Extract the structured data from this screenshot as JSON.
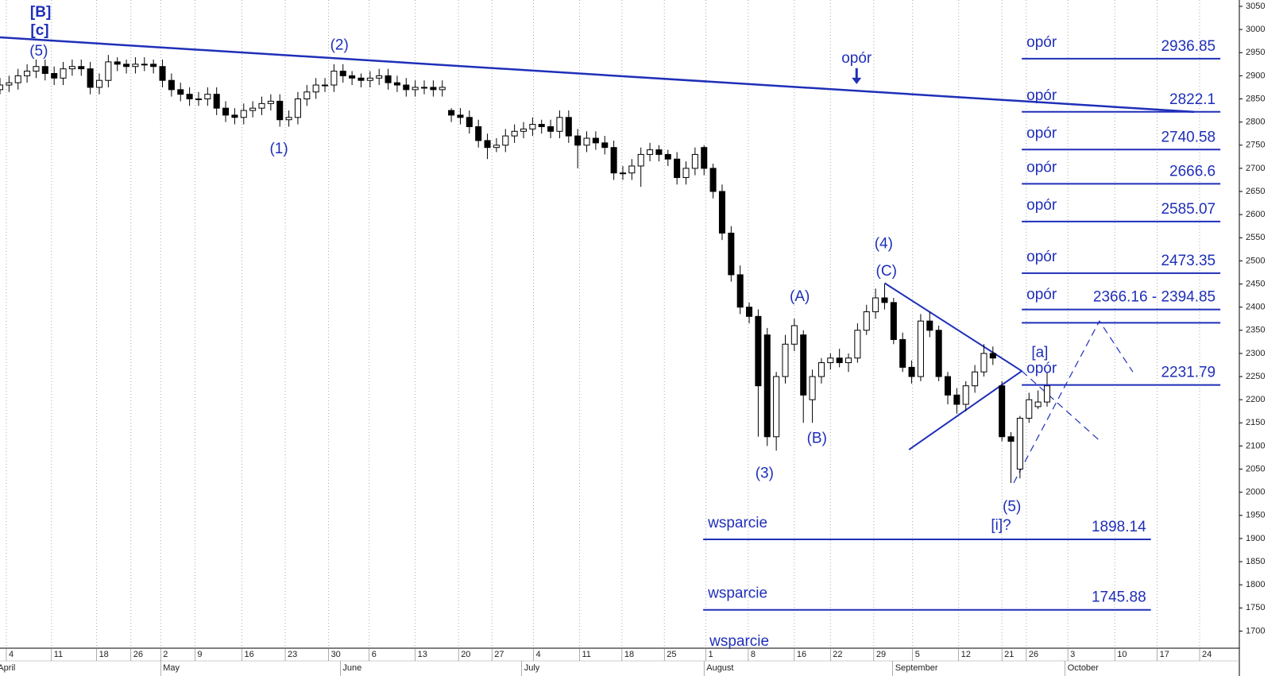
{
  "chart_data": {
    "type": "candlestick",
    "x": [
      0,
      1,
      2,
      3,
      4,
      5,
      6,
      7,
      8,
      9,
      10,
      11,
      12,
      13,
      14,
      15,
      16,
      17,
      18,
      19,
      20,
      21,
      22,
      23,
      24,
      25,
      26,
      27,
      28,
      29,
      30,
      31,
      32,
      33,
      34,
      35,
      36,
      37,
      38,
      39,
      40,
      41,
      42,
      43,
      44,
      45,
      46,
      47,
      48,
      49,
      50,
      51,
      52,
      53,
      54,
      55,
      56,
      57,
      58,
      59,
      60,
      61,
      62,
      63,
      64,
      65,
      66,
      67,
      68,
      69,
      70,
      71,
      72,
      73,
      74,
      75,
      76,
      77,
      78,
      79,
      80,
      81,
      82,
      83,
      84,
      85,
      86,
      87,
      88,
      89,
      90,
      91,
      92,
      93,
      94,
      95,
      96,
      97,
      98,
      99,
      100,
      101,
      102,
      103,
      104,
      105,
      106,
      107,
      108,
      109,
      110,
      111,
      112,
      113,
      114,
      115,
      116
    ],
    "ohlc": [
      [
        2870,
        2895,
        2860,
        2880
      ],
      [
        2880,
        2900,
        2865,
        2885
      ],
      [
        2885,
        2915,
        2870,
        2900
      ],
      [
        2900,
        2925,
        2885,
        2910
      ],
      [
        2910,
        2935,
        2895,
        2920
      ],
      [
        2920,
        2935,
        2890,
        2905
      ],
      [
        2905,
        2920,
        2880,
        2895
      ],
      [
        2895,
        2930,
        2880,
        2915
      ],
      [
        2915,
        2935,
        2900,
        2920
      ],
      [
        2920,
        2935,
        2900,
        2915
      ],
      [
        2915,
        2930,
        2860,
        2875
      ],
      [
        2875,
        2905,
        2860,
        2890
      ],
      [
        2890,
        2945,
        2875,
        2930
      ],
      [
        2930,
        2940,
        2910,
        2925
      ],
      [
        2925,
        2935,
        2905,
        2920
      ],
      [
        2920,
        2940,
        2905,
        2925
      ],
      [
        2925,
        2940,
        2910,
        2925
      ],
      [
        2925,
        2935,
        2905,
        2920
      ],
      [
        2920,
        2935,
        2875,
        2890
      ],
      [
        2890,
        2905,
        2855,
        2870
      ],
      [
        2870,
        2885,
        2845,
        2860
      ],
      [
        2860,
        2875,
        2835,
        2850
      ],
      [
        2850,
        2865,
        2835,
        2850
      ],
      [
        2850,
        2875,
        2835,
        2860
      ],
      [
        2860,
        2875,
        2815,
        2830
      ],
      [
        2830,
        2845,
        2800,
        2815
      ],
      [
        2815,
        2830,
        2795,
        2810
      ],
      [
        2810,
        2840,
        2795,
        2825
      ],
      [
        2825,
        2845,
        2810,
        2830
      ],
      [
        2830,
        2855,
        2815,
        2840
      ],
      [
        2840,
        2860,
        2825,
        2845
      ],
      [
        2845,
        2860,
        2790,
        2805
      ],
      [
        2805,
        2825,
        2790,
        2810
      ],
      [
        2810,
        2865,
        2795,
        2850
      ],
      [
        2850,
        2880,
        2835,
        2865
      ],
      [
        2865,
        2895,
        2850,
        2880
      ],
      [
        2880,
        2895,
        2865,
        2880
      ],
      [
        2880,
        2925,
        2865,
        2910
      ],
      [
        2910,
        2925,
        2885,
        2900
      ],
      [
        2900,
        2910,
        2880,
        2895
      ],
      [
        2895,
        2905,
        2875,
        2890
      ],
      [
        2890,
        2910,
        2875,
        2895
      ],
      [
        2895,
        2915,
        2880,
        2900
      ],
      [
        2900,
        2915,
        2870,
        2885
      ],
      [
        2885,
        2900,
        2865,
        2880
      ],
      [
        2880,
        2895,
        2855,
        2870
      ],
      [
        2870,
        2890,
        2855,
        2875
      ],
      [
        2875,
        2890,
        2860,
        2875
      ],
      [
        2875,
        2890,
        2855,
        2870
      ],
      [
        2870,
        2890,
        2855,
        2875
      ],
      [
        2825,
        2830,
        2800,
        2815
      ],
      [
        2815,
        2830,
        2795,
        2810
      ],
      [
        2810,
        2825,
        2775,
        2790
      ],
      [
        2790,
        2805,
        2745,
        2760
      ],
      [
        2760,
        2775,
        2720,
        2745
      ],
      [
        2745,
        2765,
        2735,
        2750
      ],
      [
        2750,
        2785,
        2735,
        2770
      ],
      [
        2770,
        2795,
        2755,
        2780
      ],
      [
        2780,
        2800,
        2765,
        2785
      ],
      [
        2785,
        2810,
        2770,
        2795
      ],
      [
        2795,
        2805,
        2775,
        2790
      ],
      [
        2790,
        2805,
        2765,
        2780
      ],
      [
        2780,
        2825,
        2765,
        2810
      ],
      [
        2810,
        2825,
        2755,
        2770
      ],
      [
        2770,
        2785,
        2700,
        2750
      ],
      [
        2750,
        2780,
        2735,
        2765
      ],
      [
        2765,
        2780,
        2740,
        2755
      ],
      [
        2755,
        2770,
        2730,
        2745
      ],
      [
        2745,
        2760,
        2675,
        2690
      ],
      [
        2690,
        2705,
        2675,
        2690
      ],
      [
        2690,
        2720,
        2675,
        2705
      ],
      [
        2705,
        2745,
        2660,
        2730
      ],
      [
        2730,
        2755,
        2715,
        2740
      ],
      [
        2740,
        2750,
        2715,
        2730
      ],
      [
        2730,
        2740,
        2705,
        2720
      ],
      [
        2720,
        2735,
        2665,
        2680
      ],
      [
        2680,
        2715,
        2665,
        2700
      ],
      [
        2700,
        2745,
        2685,
        2730
      ],
      [
        2745,
        2750,
        2685,
        2700
      ],
      [
        2700,
        2710,
        2635,
        2650
      ],
      [
        2650,
        2665,
        2545,
        2560
      ],
      [
        2560,
        2575,
        2455,
        2470
      ],
      [
        2470,
        2490,
        2385,
        2400
      ],
      [
        2400,
        2410,
        2365,
        2380
      ],
      [
        2380,
        2395,
        2120,
        2230
      ],
      [
        2340,
        2355,
        2100,
        2120
      ],
      [
        2120,
        2260,
        2090,
        2250
      ],
      [
        2250,
        2340,
        2235,
        2320
      ],
      [
        2320,
        2375,
        2305,
        2360
      ],
      [
        2340,
        2350,
        2150,
        2210
      ],
      [
        2200,
        2265,
        2150,
        2250
      ],
      [
        2250,
        2290,
        2235,
        2280
      ],
      [
        2280,
        2300,
        2265,
        2290
      ],
      [
        2290,
        2310,
        2270,
        2280
      ],
      [
        2280,
        2300,
        2260,
        2290
      ],
      [
        2290,
        2365,
        2280,
        2350
      ],
      [
        2350,
        2405,
        2340,
        2390
      ],
      [
        2390,
        2440,
        2375,
        2420
      ],
      [
        2420,
        2450,
        2395,
        2410
      ],
      [
        2410,
        2420,
        2320,
        2330
      ],
      [
        2330,
        2345,
        2260,
        2270
      ],
      [
        2270,
        2285,
        2235,
        2250
      ],
      [
        2250,
        2385,
        2240,
        2370
      ],
      [
        2370,
        2390,
        2335,
        2350
      ],
      [
        2350,
        2360,
        2240,
        2250
      ],
      [
        2250,
        2260,
        2190,
        2210
      ],
      [
        2210,
        2225,
        2170,
        2190
      ],
      [
        2190,
        2240,
        2175,
        2230
      ],
      [
        2230,
        2275,
        2215,
        2260
      ],
      [
        2260,
        2320,
        2250,
        2300
      ],
      [
        2300,
        2315,
        2275,
        2290
      ],
      [
        2230,
        2240,
        2110,
        2120
      ],
      [
        2120,
        2130,
        2020,
        2110
      ],
      [
        2050,
        2165,
        2030,
        2160
      ],
      [
        2160,
        2215,
        2150,
        2200
      ],
      [
        2185,
        2220,
        2180,
        2195
      ],
      [
        2195,
        2260,
        2185,
        2230
      ]
    ],
    "up_color": "#ffffff",
    "down_color": "#000000",
    "color": "#1f2fb8",
    "xlim": [
      0,
      137.3
    ],
    "ylim": [
      1663,
      3050
    ],
    "yticks": [
      1700,
      1750,
      1800,
      1850,
      1900,
      1950,
      2000,
      2050,
      2100,
      2150,
      2200,
      2250,
      2300,
      2350,
      2400,
      2450,
      2500,
      2550,
      2600,
      2650,
      2700,
      2750,
      2800,
      2850,
      2900,
      2950,
      3000,
      3050
    ],
    "xticks": [
      {
        "value": 0.7,
        "label": "4"
      },
      {
        "value": 5.7,
        "label": "11"
      },
      {
        "value": 10.7,
        "label": "18"
      },
      {
        "value": 14.5,
        "label": "26"
      },
      {
        "value": 17.8,
        "label": "2"
      },
      {
        "value": 21.6,
        "label": "9"
      },
      {
        "value": 26.8,
        "label": "16"
      },
      {
        "value": 31.6,
        "label": "23"
      },
      {
        "value": 36.4,
        "label": "30"
      },
      {
        "value": 40.9,
        "label": "6"
      },
      {
        "value": 46,
        "label": "13"
      },
      {
        "value": 50.8,
        "label": "20"
      },
      {
        "value": 54.5,
        "label": "27"
      },
      {
        "value": 59.1,
        "label": "4"
      },
      {
        "value": 64.2,
        "label": "11"
      },
      {
        "value": 68.9,
        "label": "18"
      },
      {
        "value": 73.6,
        "label": "25"
      },
      {
        "value": 78.2,
        "label": "1"
      },
      {
        "value": 82.9,
        "label": "8"
      },
      {
        "value": 88,
        "label": "16"
      },
      {
        "value": 92,
        "label": "22"
      },
      {
        "value": 96.8,
        "label": "29"
      },
      {
        "value": 101.1,
        "label": "5"
      },
      {
        "value": 106.2,
        "label": "12"
      },
      {
        "value": 111,
        "label": "21"
      },
      {
        "value": 113.7,
        "label": "26"
      },
      {
        "value": 118.3,
        "label": "3"
      },
      {
        "value": 123.5,
        "label": "10"
      },
      {
        "value": 128.2,
        "label": "17"
      },
      {
        "value": 132.9,
        "label": "24"
      }
    ],
    "months": [
      {
        "value": -0.5,
        "label": "April"
      },
      {
        "value": 17.8,
        "label": "May"
      },
      {
        "value": 37.7,
        "label": "June"
      },
      {
        "value": 57.8,
        "label": "July"
      },
      {
        "value": 78,
        "label": "August"
      },
      {
        "value": 98.9,
        "label": "September"
      },
      {
        "value": 118,
        "label": "October"
      }
    ],
    "grid": true,
    "trendlines": [
      {
        "x": [
          0,
          132.3
        ],
        "y": [
          2983,
          2822
        ]
      },
      {
        "x": [
          98,
          113.2
        ],
        "y": [
          2452,
          2262
        ]
      },
      {
        "x": [
          100.7,
          113.2
        ],
        "y": [
          2092,
          2262
        ]
      }
    ],
    "projections": [
      {
        "x": [
          112.3,
          121.8,
          125.5
        ],
        "y": [
          2020,
          2370,
          2260
        ]
      },
      {
        "x": [
          113.2,
          121.8
        ],
        "y": [
          2262,
          2112
        ]
      }
    ],
    "resistance": {
      "xlim": [
        113.2,
        135.2
      ],
      "levels": [
        {
          "label": "opór",
          "value": 2936.85
        },
        {
          "label": "opór",
          "value": 2822.1
        },
        {
          "label": "opór",
          "value": 2740.58
        },
        {
          "label": "opór",
          "value": 2666.6
        },
        {
          "label": "opór",
          "value": 2585.07
        },
        {
          "label": "opór",
          "value": 2473.35
        },
        {
          "label": "opór",
          "values": [
            2366.16,
            2394.85
          ],
          "value_label": "2366.16 - 2394.85"
        },
        {
          "label": "opór",
          "value": 2231.79
        }
      ]
    },
    "support": {
      "xlim": [
        77.9,
        127.5
      ],
      "levels": [
        {
          "label": "wsparcie",
          "value": 1898.14
        },
        {
          "label": "wsparcie",
          "value": 1745.88
        },
        {
          "label": "wsparcie"
        }
      ]
    },
    "annotations": [
      {
        "text": "[B]",
        "x": 4.5,
        "y": 3036,
        "bold": true
      },
      {
        "text": "[c]",
        "x": 4.4,
        "y": 2997,
        "bold": true
      },
      {
        "text": "(5)",
        "x": 4.3,
        "y": 2952
      },
      {
        "text": "(2)",
        "x": 37.6,
        "y": 2965
      },
      {
        "text": "(1)",
        "x": 30.9,
        "y": 2741
      },
      {
        "text": "opór",
        "x": 94.9,
        "y": 2937,
        "arrow": true
      },
      {
        "text": "(4)",
        "x": 97.9,
        "y": 2536
      },
      {
        "text": "(C)",
        "x": 98.2,
        "y": 2477
      },
      {
        "text": "(A)",
        "x": 88.6,
        "y": 2422
      },
      {
        "text": "(B)",
        "x": 90.5,
        "y": 2115
      },
      {
        "text": "(3)",
        "x": 84.7,
        "y": 2040
      },
      {
        "text": "(5)",
        "x": 112.1,
        "y": 1968
      },
      {
        "text": "[i]?",
        "x": 110.9,
        "y": 1927
      },
      {
        "text": "[a]",
        "x": 115.2,
        "y": 2301
      }
    ]
  }
}
